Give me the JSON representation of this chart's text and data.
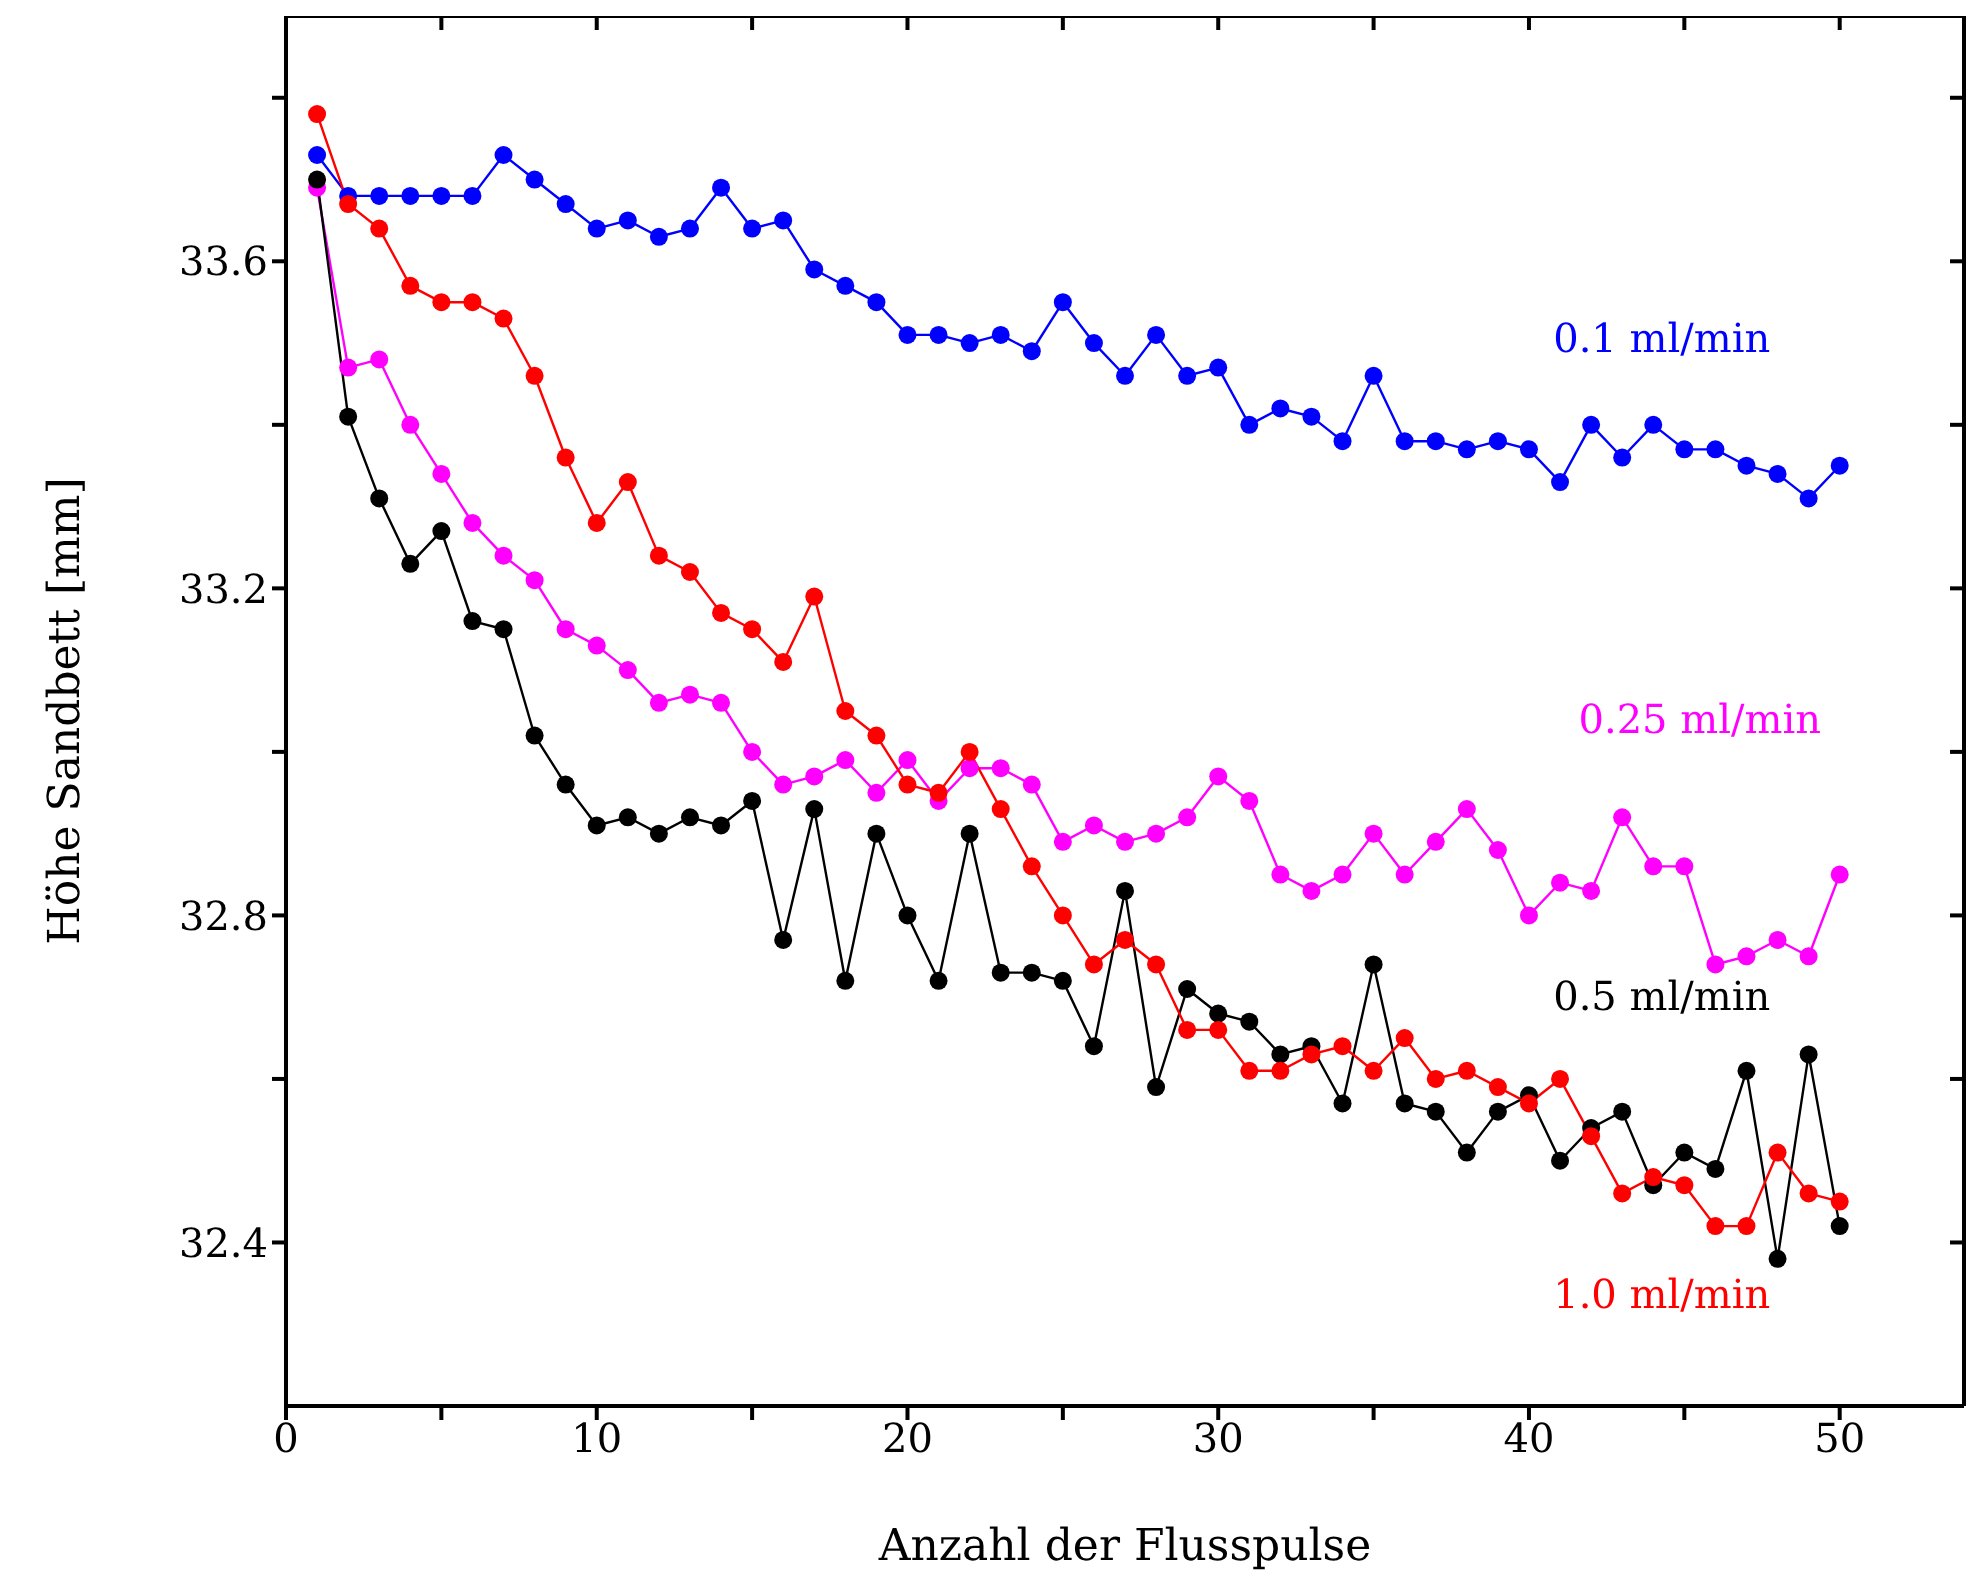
{
  "chart_data": {
    "type": "line",
    "xlabel": "Anzahl der Flusspulse",
    "ylabel": "Höhe Sandbett [mm]",
    "x": [
      1,
      2,
      3,
      4,
      5,
      6,
      7,
      8,
      9,
      10,
      11,
      12,
      13,
      14,
      15,
      16,
      17,
      18,
      19,
      20,
      21,
      22,
      23,
      24,
      25,
      26,
      27,
      28,
      29,
      30,
      31,
      32,
      33,
      34,
      35,
      36,
      37,
      38,
      39,
      40,
      41,
      42,
      43,
      44,
      45,
      46,
      47,
      48,
      49,
      50
    ],
    "xlim": [
      0,
      54
    ],
    "xticks": [
      0,
      {
        "value": 5,
        "label": null
      },
      10,
      {
        "value": 15,
        "label": null
      },
      20,
      {
        "value": 25,
        "label": null
      },
      30,
      {
        "value": 35,
        "label": null
      },
      40,
      {
        "value": 45,
        "label": null
      },
      50
    ],
    "ylim": [
      32.2,
      33.9
    ],
    "yticks": [
      32.4,
      {
        "value": 32.6,
        "label": null
      },
      32.8,
      {
        "value": 33.0,
        "label": null
      },
      33.2,
      {
        "value": 33.4,
        "label": null
      },
      33.6,
      {
        "value": 33.8,
        "label": null
      }
    ],
    "grid": false,
    "legend": false,
    "marker": "circle",
    "line_style": "solid",
    "series": [
      {
        "name": "0.1 ml/min",
        "color": "#0000ff",
        "values": [
          33.73,
          33.68,
          33.68,
          33.68,
          33.68,
          33.68,
          33.73,
          33.7,
          33.67,
          33.64,
          33.65,
          33.63,
          33.64,
          33.69,
          33.64,
          33.65,
          33.59,
          33.57,
          33.55,
          33.51,
          33.51,
          33.5,
          33.51,
          33.49,
          33.55,
          33.5,
          33.46,
          33.51,
          33.46,
          33.47,
          33.4,
          33.42,
          33.41,
          33.38,
          33.46,
          33.38,
          33.38,
          33.37,
          33.38,
          33.37,
          33.33,
          33.4,
          33.36,
          33.4,
          33.37,
          33.37,
          33.35,
          33.34,
          33.31,
          33.35
        ]
      },
      {
        "name": "0.25 ml/min",
        "color": "#ff00ff",
        "values": [
          33.69,
          33.47,
          33.48,
          33.4,
          33.34,
          33.28,
          33.24,
          33.21,
          33.15,
          33.13,
          33.1,
          33.06,
          33.07,
          33.06,
          33.0,
          32.96,
          32.97,
          32.99,
          32.95,
          32.99,
          32.94,
          32.98,
          32.98,
          32.96,
          32.89,
          32.91,
          32.89,
          32.9,
          32.92,
          32.97,
          32.94,
          32.85,
          32.83,
          32.85,
          32.9,
          32.85,
          32.89,
          32.93,
          32.88,
          32.8,
          32.84,
          32.83,
          32.92,
          32.86,
          32.86,
          32.74,
          32.75,
          32.77,
          32.75,
          32.85
        ]
      },
      {
        "name": "0.5 ml/min",
        "color": "#000000",
        "values": [
          33.7,
          33.41,
          33.31,
          33.23,
          33.27,
          33.16,
          33.15,
          33.02,
          32.96,
          32.91,
          32.92,
          32.9,
          32.92,
          32.91,
          32.94,
          32.77,
          32.93,
          32.72,
          32.9,
          32.8,
          32.72,
          32.9,
          32.73,
          32.73,
          32.72,
          32.64,
          32.83,
          32.59,
          32.71,
          32.68,
          32.67,
          32.63,
          32.64,
          32.57,
          32.74,
          32.57,
          32.56,
          32.51,
          32.56,
          32.58,
          32.5,
          32.54,
          32.56,
          32.47,
          32.51,
          32.49,
          32.61,
          32.38,
          32.63,
          32.42
        ]
      },
      {
        "name": "1.0 ml/min",
        "color": "#ff0000",
        "values": [
          33.78,
          33.67,
          33.64,
          33.57,
          33.55,
          33.55,
          33.53,
          33.46,
          33.36,
          33.28,
          33.33,
          33.24,
          33.22,
          33.17,
          33.15,
          33.11,
          33.19,
          33.05,
          33.02,
          32.96,
          32.95,
          33.0,
          32.93,
          32.86,
          32.8,
          32.74,
          32.77,
          32.74,
          32.66,
          32.66,
          32.61,
          32.61,
          32.63,
          32.64,
          32.61,
          32.65,
          32.6,
          32.61,
          32.59,
          32.57,
          32.6,
          32.53,
          32.46,
          32.48,
          32.47,
          32.42,
          32.42,
          32.51,
          32.46,
          32.45
        ]
      }
    ]
  }
}
